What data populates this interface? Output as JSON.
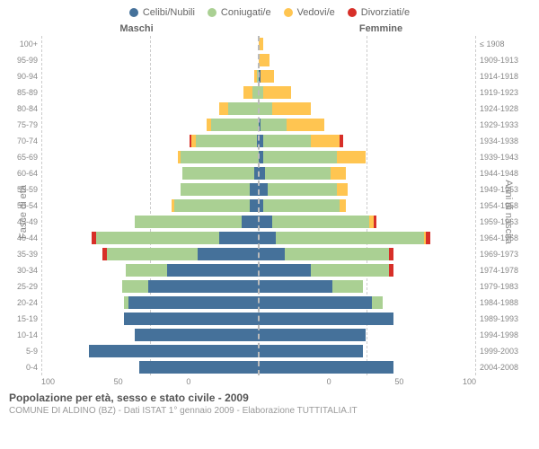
{
  "chart": {
    "type": "population-pyramid",
    "legend": [
      {
        "label": "Celibi/Nubili",
        "color": "#45719a"
      },
      {
        "label": "Coniugati/e",
        "color": "#aad093"
      },
      {
        "label": "Vedovi/e",
        "color": "#ffc551"
      },
      {
        "label": "Divorziati/e",
        "color": "#d72f28"
      }
    ],
    "header_left": "Maschi",
    "header_right": "Femmine",
    "axis_left_title": "Fasce di età",
    "axis_right_title": "Anni di nascita",
    "xmax": 100,
    "xticks_left": [
      "100",
      "50",
      "0"
    ],
    "xticks_right": [
      "0",
      "50",
      "100"
    ],
    "age_labels": [
      "100+",
      "95-99",
      "90-94",
      "85-89",
      "80-84",
      "75-79",
      "70-74",
      "65-69",
      "60-64",
      "55-59",
      "50-54",
      "45-49",
      "40-44",
      "35-39",
      "30-34",
      "25-29",
      "20-24",
      "15-19",
      "10-14",
      "5-9",
      "0-4"
    ],
    "birth_labels": [
      "≤ 1908",
      "1909-1913",
      "1914-1918",
      "1919-1923",
      "1924-1928",
      "1929-1933",
      "1934-1938",
      "1939-1943",
      "1944-1948",
      "1949-1953",
      "1954-1958",
      "1959-1963",
      "1964-1968",
      "1969-1973",
      "1974-1978",
      "1979-1983",
      "1984-1988",
      "1989-1993",
      "1994-1998",
      "1999-2003",
      "2004-2008"
    ],
    "rows": [
      {
        "m": [
          0,
          0,
          0,
          0
        ],
        "f": [
          0,
          0,
          2,
          0
        ]
      },
      {
        "m": [
          0,
          0,
          0,
          0
        ],
        "f": [
          0,
          0,
          5,
          0
        ]
      },
      {
        "m": [
          0,
          1,
          1,
          0
        ],
        "f": [
          1,
          0,
          6,
          0
        ]
      },
      {
        "m": [
          0,
          3,
          4,
          0
        ],
        "f": [
          0,
          2,
          13,
          0
        ]
      },
      {
        "m": [
          0,
          14,
          4,
          0
        ],
        "f": [
          0,
          6,
          18,
          0
        ]
      },
      {
        "m": [
          0,
          22,
          2,
          0
        ],
        "f": [
          1,
          12,
          17,
          0
        ]
      },
      {
        "m": [
          1,
          28,
          2,
          1
        ],
        "f": [
          2,
          22,
          13,
          2
        ]
      },
      {
        "m": [
          0,
          36,
          1,
          0
        ],
        "f": [
          2,
          34,
          13,
          0
        ]
      },
      {
        "m": [
          2,
          33,
          0,
          0
        ],
        "f": [
          3,
          30,
          7,
          0
        ]
      },
      {
        "m": [
          4,
          32,
          0,
          0
        ],
        "f": [
          4,
          32,
          5,
          0
        ]
      },
      {
        "m": [
          4,
          35,
          1,
          0
        ],
        "f": [
          2,
          35,
          3,
          0
        ]
      },
      {
        "m": [
          8,
          49,
          0,
          0
        ],
        "f": [
          6,
          45,
          2,
          1
        ]
      },
      {
        "m": [
          18,
          57,
          0,
          2
        ],
        "f": [
          8,
          68,
          1,
          2
        ]
      },
      {
        "m": [
          28,
          42,
          0,
          2
        ],
        "f": [
          12,
          48,
          0,
          2
        ]
      },
      {
        "m": [
          42,
          19,
          0,
          0
        ],
        "f": [
          24,
          36,
          0,
          2
        ]
      },
      {
        "m": [
          51,
          12,
          0,
          0
        ],
        "f": [
          34,
          14,
          0,
          0
        ]
      },
      {
        "m": [
          60,
          2,
          0,
          0
        ],
        "f": [
          52,
          5,
          0,
          0
        ]
      },
      {
        "m": [
          62,
          0,
          0,
          0
        ],
        "f": [
          62,
          0,
          0,
          0
        ]
      },
      {
        "m": [
          57,
          0,
          0,
          0
        ],
        "f": [
          49,
          0,
          0,
          0
        ]
      },
      {
        "m": [
          78,
          0,
          0,
          0
        ],
        "f": [
          48,
          0,
          0,
          0
        ]
      },
      {
        "m": [
          55,
          0,
          0,
          0
        ],
        "f": [
          62,
          0,
          0,
          0
        ]
      }
    ],
    "title": "Popolazione per età, sesso e stato civile - 2009",
    "subtitle": "COMUNE DI ALDINO (BZ) - Dati ISTAT 1° gennaio 2009 - Elaborazione TUTTITALIA.IT",
    "background": "#ffffff",
    "grid_color": "#cccccc"
  }
}
